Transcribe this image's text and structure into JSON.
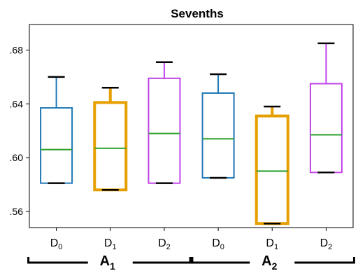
{
  "chart_data": {
    "type": "box",
    "title": "Sevenths",
    "xlabel": "",
    "ylabel": "",
    "ylim": [
      0.548,
      0.699
    ],
    "yticks": [
      {
        "value": 0.56,
        "label": ".56"
      },
      {
        "value": 0.6,
        "label": ".60"
      },
      {
        "value": 0.64,
        "label": ".64"
      },
      {
        "value": 0.68,
        "label": ".68"
      }
    ],
    "median_color": "#2ca02c",
    "whisker_cap_color": "#000000",
    "boxes": [
      {
        "label": "D",
        "sub": "0",
        "color": "#1f77b4",
        "min": 0.581,
        "q1": 0.581,
        "median": 0.606,
        "q3": 0.637,
        "max": 0.66,
        "width": 2
      },
      {
        "label": "D",
        "sub": "1",
        "color": "#e69f00",
        "min": 0.576,
        "q1": 0.576,
        "median": 0.607,
        "q3": 0.641,
        "max": 0.652,
        "width": 4
      },
      {
        "label": "D",
        "sub": "2",
        "color": "#c144e8",
        "min": 0.581,
        "q1": 0.581,
        "median": 0.618,
        "q3": 0.659,
        "max": 0.671,
        "width": 2
      },
      {
        "label": "D",
        "sub": "0",
        "color": "#1f77b4",
        "min": 0.585,
        "q1": 0.585,
        "median": 0.614,
        "q3": 0.648,
        "max": 0.662,
        "width": 2
      },
      {
        "label": "D",
        "sub": "1",
        "color": "#e69f00",
        "min": 0.551,
        "q1": 0.551,
        "median": 0.59,
        "q3": 0.631,
        "max": 0.638,
        "width": 4
      },
      {
        "label": "D",
        "sub": "2",
        "color": "#c144e8",
        "min": 0.589,
        "q1": 0.589,
        "median": 0.617,
        "q3": 0.655,
        "max": 0.685,
        "width": 2
      }
    ],
    "groups": [
      {
        "label": "A",
        "sub": "1",
        "from": 0,
        "to": 2
      },
      {
        "label": "A",
        "sub": "2",
        "from": 3,
        "to": 5
      }
    ]
  }
}
